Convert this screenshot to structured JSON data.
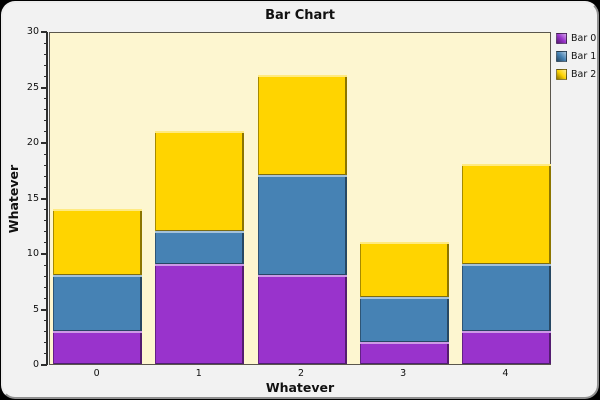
{
  "title": "Bar Chart",
  "x_axis": {
    "label": "Whatever",
    "tick_labels": [
      "0",
      "1",
      "2",
      "3",
      "4"
    ]
  },
  "y_axis": {
    "label": "Whatever",
    "tick_labels": [
      "0",
      "5",
      "10",
      "15",
      "20",
      "25",
      "30"
    ]
  },
  "legend": {
    "items": [
      {
        "label": "Bar 0",
        "color": "#9933CC"
      },
      {
        "label": "Bar 1",
        "color": "#4682B4"
      },
      {
        "label": "Bar 2",
        "color": "#FFD400"
      }
    ]
  },
  "colors": {
    "plot_background": "#FDF6D0",
    "panel_background": "#F2F2F2",
    "outer_background": "#000000",
    "series_bar0": "#9933CC",
    "series_bar1": "#4682B4",
    "series_bar2": "#FFD400"
  },
  "chart_data": {
    "type": "bar",
    "stacked": true,
    "title": "Bar Chart",
    "xlabel": "Whatever",
    "ylabel": "Whatever",
    "categories": [
      "0",
      "1",
      "2",
      "3",
      "4"
    ],
    "series": [
      {
        "name": "Bar 0",
        "color": "#9933CC",
        "values": [
          3,
          9,
          8,
          2,
          3
        ]
      },
      {
        "name": "Bar 1",
        "color": "#4682B4",
        "values": [
          5,
          3,
          9,
          4,
          6
        ]
      },
      {
        "name": "Bar 2",
        "color": "#FFD400",
        "values": [
          6,
          9,
          9,
          5,
          9
        ]
      }
    ],
    "stack_totals": [
      14,
      21,
      26,
      11,
      18
    ],
    "ylim": [
      0,
      30
    ],
    "y_major_step": 5,
    "y_minor_step": 1,
    "grid": false,
    "legend_position": "top-right",
    "plot_background": "#FDF6D0"
  }
}
